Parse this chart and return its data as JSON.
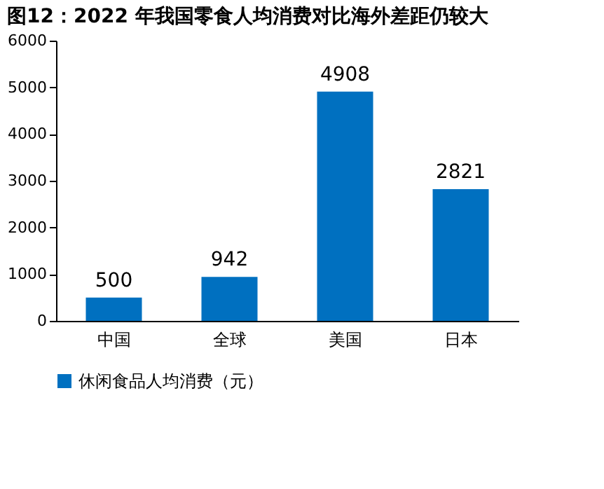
{
  "chart_data": {
    "type": "bar",
    "title": "图12：2022 年我国零食人均消费对比海外差距仍较大",
    "categories": [
      "中国",
      "全球",
      "美国",
      "日本"
    ],
    "series": [
      {
        "name": "休闲食品人均消费（元）",
        "color": "#0070c0",
        "values": [
          500,
          942,
          4908,
          2821
        ]
      }
    ],
    "ylim": [
      0,
      6000
    ],
    "yticks": [
      0,
      1000,
      2000,
      3000,
      4000,
      5000,
      6000
    ],
    "grid": false,
    "legend": "bottom",
    "data_labels": true
  }
}
